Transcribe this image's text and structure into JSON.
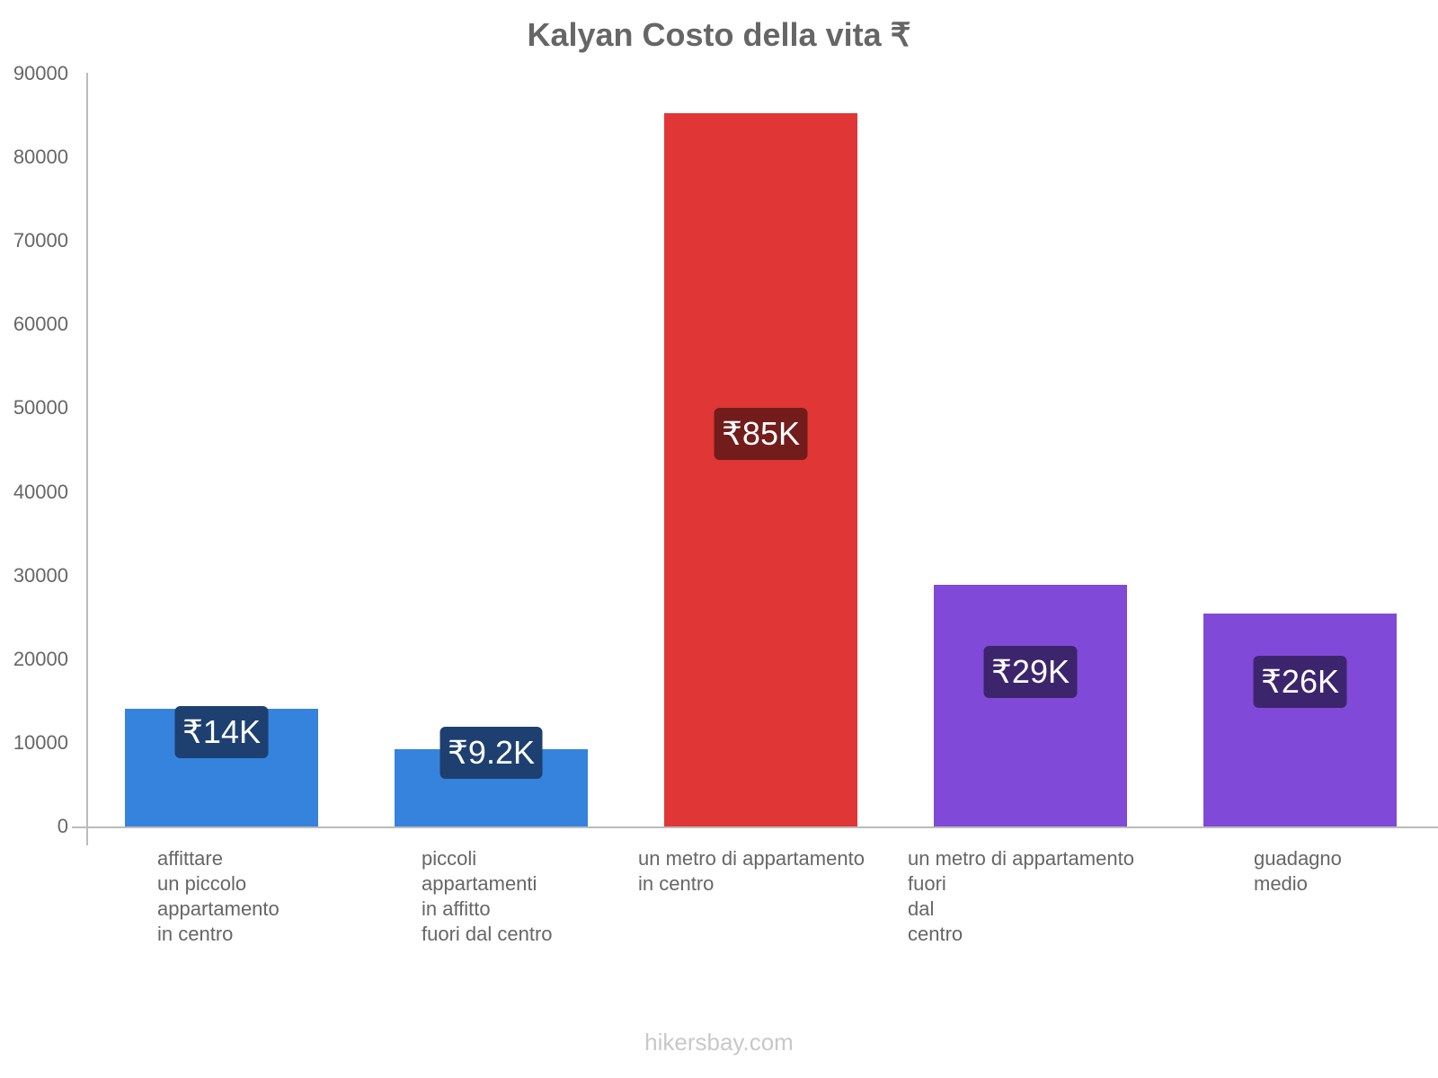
{
  "title": "Kalyan Costo della vita ₹",
  "footer": "hikersbay.com",
  "chart_data": {
    "type": "bar",
    "title": "Kalyan Costo della vita ₹",
    "xlabel": "",
    "ylabel": "",
    "ylim": [
      0,
      90000
    ],
    "yticks": [
      0,
      10000,
      20000,
      30000,
      40000,
      50000,
      60000,
      70000,
      80000,
      90000
    ],
    "grid": false,
    "legend": null,
    "categories": [
      "affittare un piccolo appartamento in centro",
      "piccoli appartamenti in affitto fuori dal centro",
      "un metro di appartamento in centro",
      "un metro di appartamento fuori dal centro",
      "guadagno medio"
    ],
    "values": [
      14100,
      9200,
      85300,
      28900,
      25500
    ],
    "value_labels": [
      "₹14K",
      "₹9.2K",
      "₹85K",
      "₹29K",
      "₹26K"
    ],
    "colors": [
      "#3583dc",
      "#3583dc",
      "#e03636",
      "#8049d8",
      "#8049d8"
    ],
    "label_bg_colors": [
      "#1d4070",
      "#1d4070",
      "#721c1c",
      "#3d256d",
      "#3d256d"
    ]
  },
  "yticks_labels": [
    "0",
    "10000",
    "20000",
    "30000",
    "40000",
    "50000",
    "60000",
    "70000",
    "80000",
    "90000"
  ],
  "xlabels": [
    "affittare\nun piccolo\nappartamento\nin centro",
    "piccoli\nappartamenti\nin affitto\nfuori dal centro",
    "un metro di appartamento\nin centro",
    "un metro di appartamento\nfuori\ndal\ncentro",
    "guadagno\nmedio"
  ]
}
